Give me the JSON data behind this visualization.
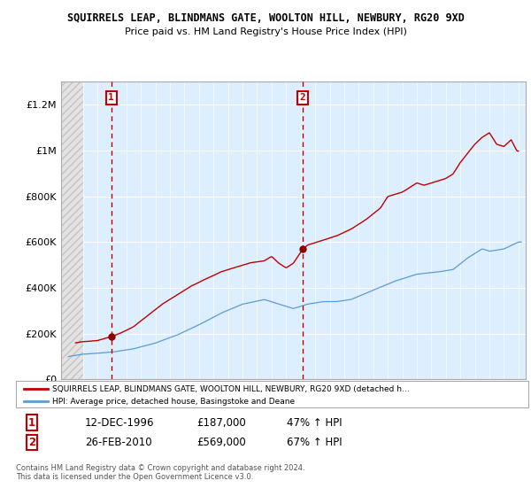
{
  "title": "SQUIRRELS LEAP, BLINDMANS GATE, WOOLTON HILL, NEWBURY, RG20 9XD",
  "subtitle": "Price paid vs. HM Land Registry's House Price Index (HPI)",
  "ylim": [
    0,
    1300000
  ],
  "yticks": [
    0,
    200000,
    400000,
    600000,
    800000,
    1000000,
    1200000
  ],
  "ytick_labels": [
    "£0",
    "£200K",
    "£400K",
    "£600K",
    "£800K",
    "£1M",
    "£1.2M"
  ],
  "xlim_min": 1993.5,
  "xlim_max": 2025.5,
  "sale1": {
    "date_num": 1996.96,
    "price": 187000,
    "label": "1",
    "date_str": "12-DEC-1996",
    "pct": "47% ↑ HPI"
  },
  "sale2": {
    "date_num": 2010.12,
    "price": 569000,
    "label": "2",
    "date_str": "26-FEB-2010",
    "pct": "67% ↑ HPI"
  },
  "hpi_color": "#5b9bd5",
  "price_color": "#c00000",
  "sale_dot_color": "#8b0000",
  "hatch_facecolor": "#e0e0e0",
  "blue_bg_color": "#ddeeff",
  "grid_color": "#cccccc",
  "legend_label1": "SQUIRRELS LEAP, BLINDMANS GATE, WOOLTON HILL, NEWBURY, RG20 9XD (detached h…",
  "legend_label2": "HPI: Average price, detached house, Basingstoke and Deane",
  "footer": "Contains HM Land Registry data © Crown copyright and database right 2024.\nThis data is licensed under the Open Government Licence v3.0.",
  "box_color": "#c00000"
}
